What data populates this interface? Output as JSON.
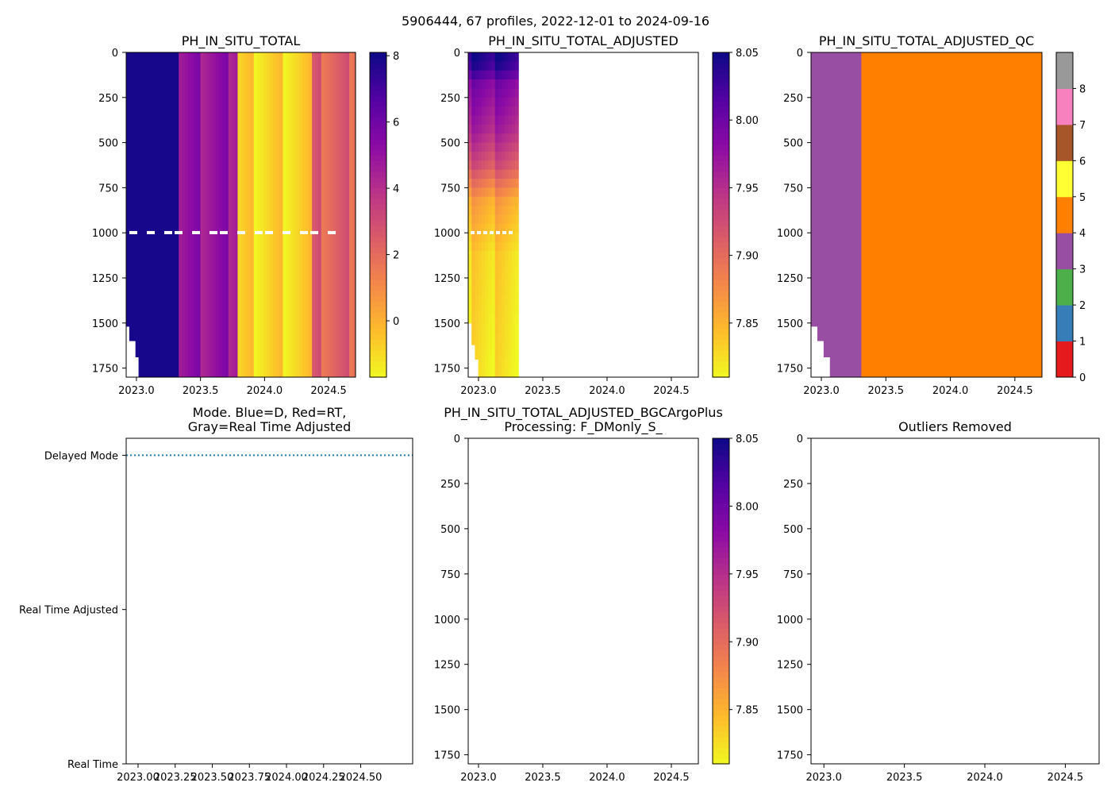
{
  "suptitle": "5906444, 67 profiles, 2022-12-01 to 2024-09-16",
  "chart_data": [
    {
      "id": "p1",
      "type": "heatmap",
      "title": "PH_IN_SITU_TOTAL",
      "x_ticks": [
        "2023.0",
        "2023.5",
        "2024.0",
        "2024.5"
      ],
      "x_tick_values": [
        2023.0,
        2023.5,
        2024.0,
        2024.5
      ],
      "xlim": [
        2022.92,
        2024.71
      ],
      "y_ticks": [
        "0",
        "250",
        "500",
        "750",
        "1000",
        "1250",
        "1500",
        "1750"
      ],
      "ylim": [
        1800,
        0
      ],
      "colorbar": {
        "cmap": "plasma_r",
        "ticks": [
          "8",
          "6",
          "4",
          "2",
          "0"
        ],
        "tick_values": [
          8,
          6,
          4,
          2,
          0
        ],
        "range": [
          -1.7,
          8.1
        ]
      },
      "column_groups": [
        {
          "x_start": 2022.92,
          "x_end": 2023.33,
          "value": 7.9,
          "max_depth": 1530
        },
        {
          "x_start": 2023.33,
          "x_end": 2023.79,
          "value": 5.0,
          "max_depth": 1800
        },
        {
          "x_start": 2023.79,
          "x_end": 2024.37,
          "value": -0.9,
          "max_depth": 1800
        },
        {
          "x_start": 2024.37,
          "x_end": 2024.71,
          "value": 2.3,
          "max_depth": 1800
        }
      ]
    },
    {
      "id": "p2",
      "type": "heatmap",
      "title": "PH_IN_SITU_TOTAL_ADJUSTED",
      "x_ticks": [
        "2023.0",
        "2023.5",
        "2024.0",
        "2024.5"
      ],
      "x_tick_values": [
        2023.0,
        2023.5,
        2024.0,
        2024.5
      ],
      "xlim": [
        2022.92,
        2024.71
      ],
      "y_ticks": [
        "0",
        "250",
        "500",
        "750",
        "1000",
        "1250",
        "1500",
        "1750"
      ],
      "ylim": [
        1800,
        0
      ],
      "colorbar": {
        "cmap": "plasma_r",
        "ticks": [
          "8.05",
          "8.00",
          "7.95",
          "7.90",
          "7.85"
        ],
        "tick_values": [
          8.05,
          8.0,
          7.95,
          7.9,
          7.85
        ],
        "range": [
          7.81,
          8.05
        ]
      },
      "data_x_range": [
        2022.92,
        2023.31
      ],
      "profile_value_by_depth": [
        {
          "depth": 0,
          "value": 8.04
        },
        {
          "depth": 60,
          "value": 8.03
        },
        {
          "depth": 150,
          "value": 7.99
        },
        {
          "depth": 400,
          "value": 7.96
        },
        {
          "depth": 600,
          "value": 7.92
        },
        {
          "depth": 800,
          "value": 7.86
        },
        {
          "depth": 1100,
          "value": 7.83
        },
        {
          "depth": 1800,
          "value": 7.82
        }
      ]
    },
    {
      "id": "p3",
      "type": "heatmap",
      "title": "PH_IN_SITU_TOTAL_ADJUSTED_QC",
      "x_ticks": [
        "2023.0",
        "2023.5",
        "2024.0",
        "2024.5"
      ],
      "x_tick_values": [
        2023.0,
        2023.5,
        2024.0,
        2024.5
      ],
      "xlim": [
        2022.92,
        2024.71
      ],
      "y_ticks": [
        "0",
        "250",
        "500",
        "750",
        "1000",
        "1250",
        "1500",
        "1750"
      ],
      "ylim": [
        1800,
        0
      ],
      "colorbar": {
        "cmap": "qc_categorical",
        "ticks": [
          "0",
          "1",
          "2",
          "3",
          "4",
          "5",
          "6",
          "7",
          "8"
        ],
        "tick_values": [
          0,
          1,
          2,
          3,
          4,
          5,
          6,
          7,
          8
        ],
        "range": [
          0,
          9
        ],
        "colors": [
          "#e41a1c",
          "#377eb8",
          "#4daf4a",
          "#984ea3",
          "#ff7f00",
          "#ffff33",
          "#a65628",
          "#f781bf",
          "#999999"
        ]
      },
      "blocks": [
        {
          "x_start": 2022.92,
          "x_end": 2023.31,
          "qc": 3
        },
        {
          "x_start": 2023.31,
          "x_end": 2024.71,
          "qc": 4
        }
      ]
    },
    {
      "id": "p4",
      "type": "line",
      "title_lines": [
        "Mode. Blue=D, Red=RT,",
        "Gray=Real Time Adjusted"
      ],
      "x_ticks": [
        "2023.00",
        "2023.25",
        "2023.50",
        "2023.75",
        "2024.00",
        "2024.25",
        "2024.50"
      ],
      "x_tick_values": [
        2023.0,
        2023.25,
        2023.5,
        2023.75,
        2024.0,
        2024.25,
        2024.5
      ],
      "xlim": [
        2022.92,
        2024.85
      ],
      "y_categories": [
        "Delayed Mode",
        "Real Time Adjusted",
        "Real Time"
      ],
      "y_category_values": [
        2,
        1,
        0
      ],
      "ylim": [
        0,
        2.11
      ],
      "series": [
        {
          "name": "Delayed Mode",
          "color": "#1f77b4",
          "style": "dotted",
          "y": 2,
          "x_range": [
            2022.92,
            2024.85
          ]
        }
      ]
    },
    {
      "id": "p5",
      "type": "heatmap",
      "title_lines": [
        "PH_IN_SITU_TOTAL_ADJUSTED_BGCArgoPlus",
        "Processing: F_DMonly_S_"
      ],
      "x_ticks": [
        "2023.0",
        "2023.5",
        "2024.0",
        "2024.5"
      ],
      "x_tick_values": [
        2023.0,
        2023.5,
        2024.0,
        2024.5
      ],
      "xlim": [
        2022.92,
        2024.71
      ],
      "y_ticks": [
        "0",
        "250",
        "500",
        "750",
        "1000",
        "1250",
        "1500",
        "1750"
      ],
      "ylim": [
        1800,
        0
      ],
      "colorbar": {
        "cmap": "plasma_r",
        "ticks": [
          "8.05",
          "8.00",
          "7.95",
          "7.90",
          "7.85"
        ],
        "tick_values": [
          8.05,
          8.0,
          7.95,
          7.9,
          7.85
        ],
        "range": [
          7.81,
          8.05
        ]
      }
    },
    {
      "id": "p6",
      "type": "heatmap",
      "title": "Outliers Removed",
      "x_ticks": [
        "2023.0",
        "2023.5",
        "2024.0",
        "2024.5"
      ],
      "x_tick_values": [
        2023.0,
        2023.5,
        2024.0,
        2024.5
      ],
      "xlim": [
        2022.92,
        2024.71
      ],
      "y_ticks": [
        "0",
        "250",
        "500",
        "750",
        "1000",
        "1250",
        "1500",
        "1750"
      ],
      "ylim": [
        1800,
        0
      ]
    }
  ]
}
